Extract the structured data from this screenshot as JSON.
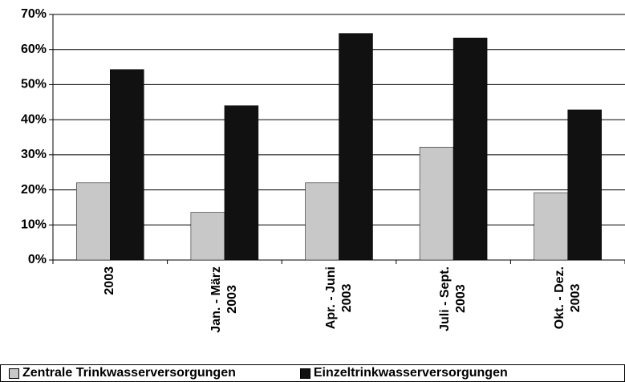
{
  "chart_data": {
    "type": "bar",
    "categories": [
      "2003",
      "Jan. - März\n2003",
      "Apr. - Juni\n2003",
      "Juli - Sept.\n2003",
      "Okt. - Dez.\n2003"
    ],
    "series": [
      {
        "name": "Zentrale Trinkwasserversorgungen",
        "color": "#c8c8c8",
        "values": [
          22,
          13.6,
          22,
          32.2,
          19.2
        ]
      },
      {
        "name": "Einzeltrinkwasserversorgungen",
        "color": "#111111",
        "values": [
          54.3,
          44,
          64.6,
          63.3,
          42.8
        ]
      }
    ],
    "ylim": [
      0,
      70
    ],
    "yticks": [
      {
        "value": 0,
        "label": "0%"
      },
      {
        "value": 10,
        "label": "10%"
      },
      {
        "value": 20,
        "label": "20%"
      },
      {
        "value": 30,
        "label": "30%"
      },
      {
        "value": 40,
        "label": "40%"
      },
      {
        "value": 50,
        "label": "50%"
      },
      {
        "value": 60,
        "label": "60%"
      },
      {
        "value": 70,
        "label": "70%"
      }
    ],
    "grid": true,
    "legend": "bottom"
  }
}
